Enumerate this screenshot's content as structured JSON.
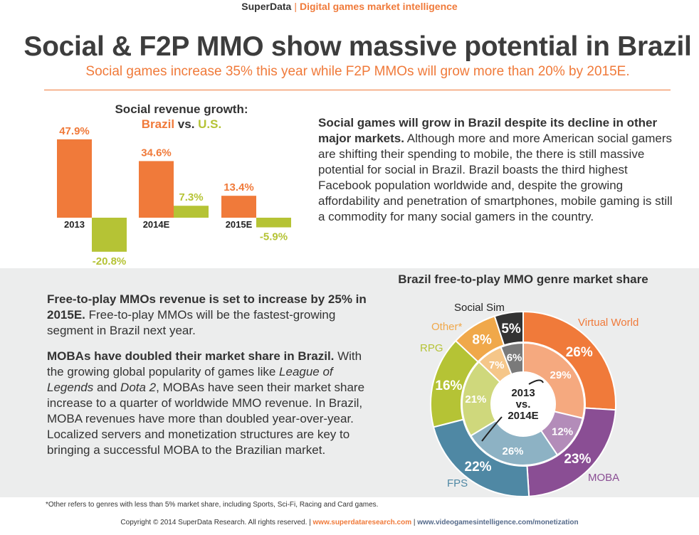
{
  "header": {
    "brand": "SuperData",
    "separator": "|",
    "tagline": "Digital games market intelligence",
    "title": "Social & F2P MMO show massive potential in Brazil",
    "subtitle": "Social games increase 35% this year while F2P MMOs will grow more than 20% by 2015E."
  },
  "bar_section": {
    "title_line1": "Social revenue growth:",
    "title_brazil": "Brazil",
    "title_vs": " vs. ",
    "title_us": "U.S."
  },
  "para1": {
    "bold": "Social games will grow in Brazil despite its decline in other major markets.",
    "text": " Although more and more American social gamers are shifting their spending to mobile, the there is still massive potential for social in Brazil. Brazil boasts the third highest Facebook population worldwide and, despite the growing affordability and penetration of smartphones, mobile gaming is still a commodity for many social gamers in the country."
  },
  "para2": {
    "bold": "Free-to-play MMOs revenue is set to increase by 25% in 2015E.",
    "text": " Free-to-play MMOs will be the fastest-growing segment in Brazil next year."
  },
  "para3": {
    "bold": "MOBAs have doubled their market share in Brazil.",
    "text1": " With the growing global popularity of games like ",
    "italic1": "League of Legends",
    "text2": " and ",
    "italic2": "Dota 2",
    "text3": ", MOBAs have seen their market share increase to a quarter of worldwide MMO revenue. In Brazil, MOBA revenues have more than doubled year-over-year. Localized servers and monetization structures are key to bringing a successful MOBA to the Brazilian market."
  },
  "pie_section": {
    "center_line1": "2013",
    "center_line2": "vs.",
    "center_line3": "2014E"
  },
  "footer": {
    "footnote": "*Other refers to genres with less than 5% market share, including Sports, Sci-Fi, Racing and Card games.",
    "copyright": "Copyright © 2014 SuperData Research. All rights reserved.",
    "sep1": " | ",
    "link1": "www.superdataresearch.com",
    "sep2": " | ",
    "link2": "www.videogamesintelligence.com/monetization"
  },
  "colors": {
    "brazil": "#f07a3a",
    "us": "#b5c335",
    "virtual_world": "#f07a3a",
    "moba": "#8a4e94",
    "fps": "#4f88a4",
    "rpg": "#b5c335",
    "other": "#f0a84a",
    "social_sim": "#333333"
  },
  "chart_data": [
    {
      "type": "bar",
      "title": "Social revenue growth: Brazil vs. U.S.",
      "categories": [
        "2013",
        "2014E",
        "2015E"
      ],
      "series": [
        {
          "name": "Brazil",
          "values": [
            47.9,
            34.6,
            13.4
          ],
          "labels": [
            "47.9%",
            "34.6%",
            "13.4%"
          ]
        },
        {
          "name": "U.S.",
          "values": [
            -20.8,
            7.3,
            -5.9
          ],
          "labels": [
            "-20.8%",
            "7.3%",
            "-5.9%"
          ]
        }
      ],
      "ylabel": "",
      "xlabel": ""
    },
    {
      "type": "pie",
      "title": "Brazil free-to-play MMO genre market share",
      "categories": [
        "Virtual World",
        "MOBA",
        "FPS",
        "RPG",
        "Other*",
        "Social Sim"
      ],
      "series": [
        {
          "name": "2013",
          "values": [
            29,
            12,
            26,
            21,
            7,
            6
          ],
          "labels": [
            "29%",
            "12%",
            "26%",
            "21%",
            "7%",
            "6%"
          ]
        },
        {
          "name": "2014E",
          "values": [
            26,
            23,
            22,
            16,
            8,
            5
          ],
          "labels": [
            "26%",
            "23%",
            "22%",
            "16%",
            "8%",
            "5%"
          ]
        }
      ]
    }
  ]
}
